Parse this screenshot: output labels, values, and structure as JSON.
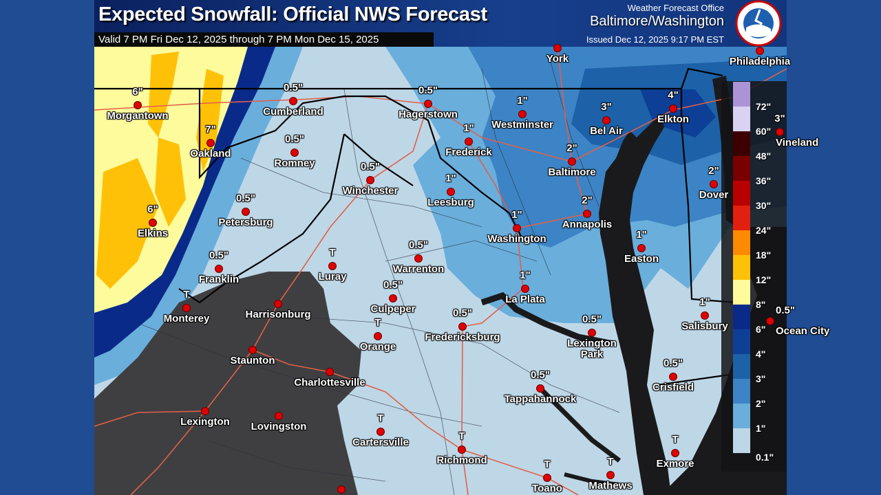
{
  "header": {
    "title": "Expected Snowfall: Official NWS Forecast",
    "valid": "Valid 7 PM Fri Dec 12, 2025 through 7 PM Mon Dec 15, 2025",
    "wfo_label": "Weather Forecast Office",
    "office": "Baltimore/Washington",
    "issued": "Issued Dec 12, 2025 9:17 PM EST",
    "logo_text": "NATIONAL WEATHER SERVICE"
  },
  "legend": {
    "labels": [
      "0.1\"",
      "1\"",
      "2\"",
      "3\"",
      "4\"",
      "6\"",
      "8\"",
      "12\"",
      "18\"",
      "24\"",
      "30\"",
      "36\"",
      "48\"",
      "60\"",
      "72\""
    ],
    "colors": [
      "#bed7e7",
      "#6aaedc",
      "#3c84c5",
      "#1d61a8",
      "#0d3f96",
      "#0a2a8a",
      "#fdfb9c",
      "#ffc107",
      "#ff8a00",
      "#e2200f",
      "#b80000",
      "#7a0000",
      "#3d0000",
      "#d9d2f2",
      "#ab93d6"
    ],
    "arrow_color": "#8e6cc0"
  },
  "colors": {
    "no_data": "#3f3f41",
    "water": "#1a1a1c",
    "road": "#e0604a",
    "city_dot": "#e00000"
  },
  "cities": [
    {
      "name": "Morgantown",
      "value": "6\""
    },
    {
      "name": "Oakland",
      "value": "7\""
    },
    {
      "name": "Elkins",
      "value": "6\""
    },
    {
      "name": "Cumberland",
      "value": "0.5\""
    },
    {
      "name": "Romney",
      "value": "0.5\""
    },
    {
      "name": "Winchester",
      "value": "0.5\""
    },
    {
      "name": "Petersburg",
      "value": "0.5\""
    },
    {
      "name": "Franklin",
      "value": "0.5\""
    },
    {
      "name": "Monterey",
      "value": "T"
    },
    {
      "name": "Luray",
      "value": "T"
    },
    {
      "name": "Harrisonburg",
      "value": ""
    },
    {
      "name": "Staunton",
      "value": ""
    },
    {
      "name": "Charlottesville",
      "value": ""
    },
    {
      "name": "Lexington",
      "value": ""
    },
    {
      "name": "Lovingston",
      "value": ""
    },
    {
      "name": "Hagerstown",
      "value": "0.5\""
    },
    {
      "name": "Frederick",
      "value": "1\""
    },
    {
      "name": "Westminster",
      "value": "1\""
    },
    {
      "name": "York",
      "value": ""
    },
    {
      "name": "Bel Air",
      "value": "3\""
    },
    {
      "name": "Elkton",
      "value": "4\""
    },
    {
      "name": "Philadelphia",
      "value": ""
    },
    {
      "name": "Baltimore",
      "value": "2\""
    },
    {
      "name": "Leesburg",
      "value": "1\""
    },
    {
      "name": "Washington",
      "value": "1\""
    },
    {
      "name": "Annapolis",
      "value": "2\""
    },
    {
      "name": "Dover",
      "value": "2\""
    },
    {
      "name": "Vineland",
      "value": "3\""
    },
    {
      "name": "Easton",
      "value": "1\""
    },
    {
      "name": "Warrenton",
      "value": "0.5\""
    },
    {
      "name": "Culpeper",
      "value": "0.5\""
    },
    {
      "name": "Orange",
      "value": "T"
    },
    {
      "name": "Fredericksburg",
      "value": "0.5\""
    },
    {
      "name": "La Plata",
      "value": "1\""
    },
    {
      "name": "Lexington Park",
      "value": "0.5\""
    },
    {
      "name": "Salisbury",
      "value": "1\""
    },
    {
      "name": "Ocean City",
      "value": "0.5\""
    },
    {
      "name": "Crisfield",
      "value": "0.5\""
    },
    {
      "name": "Tappahannock",
      "value": "0.5\""
    },
    {
      "name": "Cartersville",
      "value": "T"
    },
    {
      "name": "Richmond",
      "value": "T"
    },
    {
      "name": "Toano",
      "value": "T"
    },
    {
      "name": "Mathews",
      "value": "T"
    },
    {
      "name": "Exmore",
      "value": "T"
    }
  ]
}
